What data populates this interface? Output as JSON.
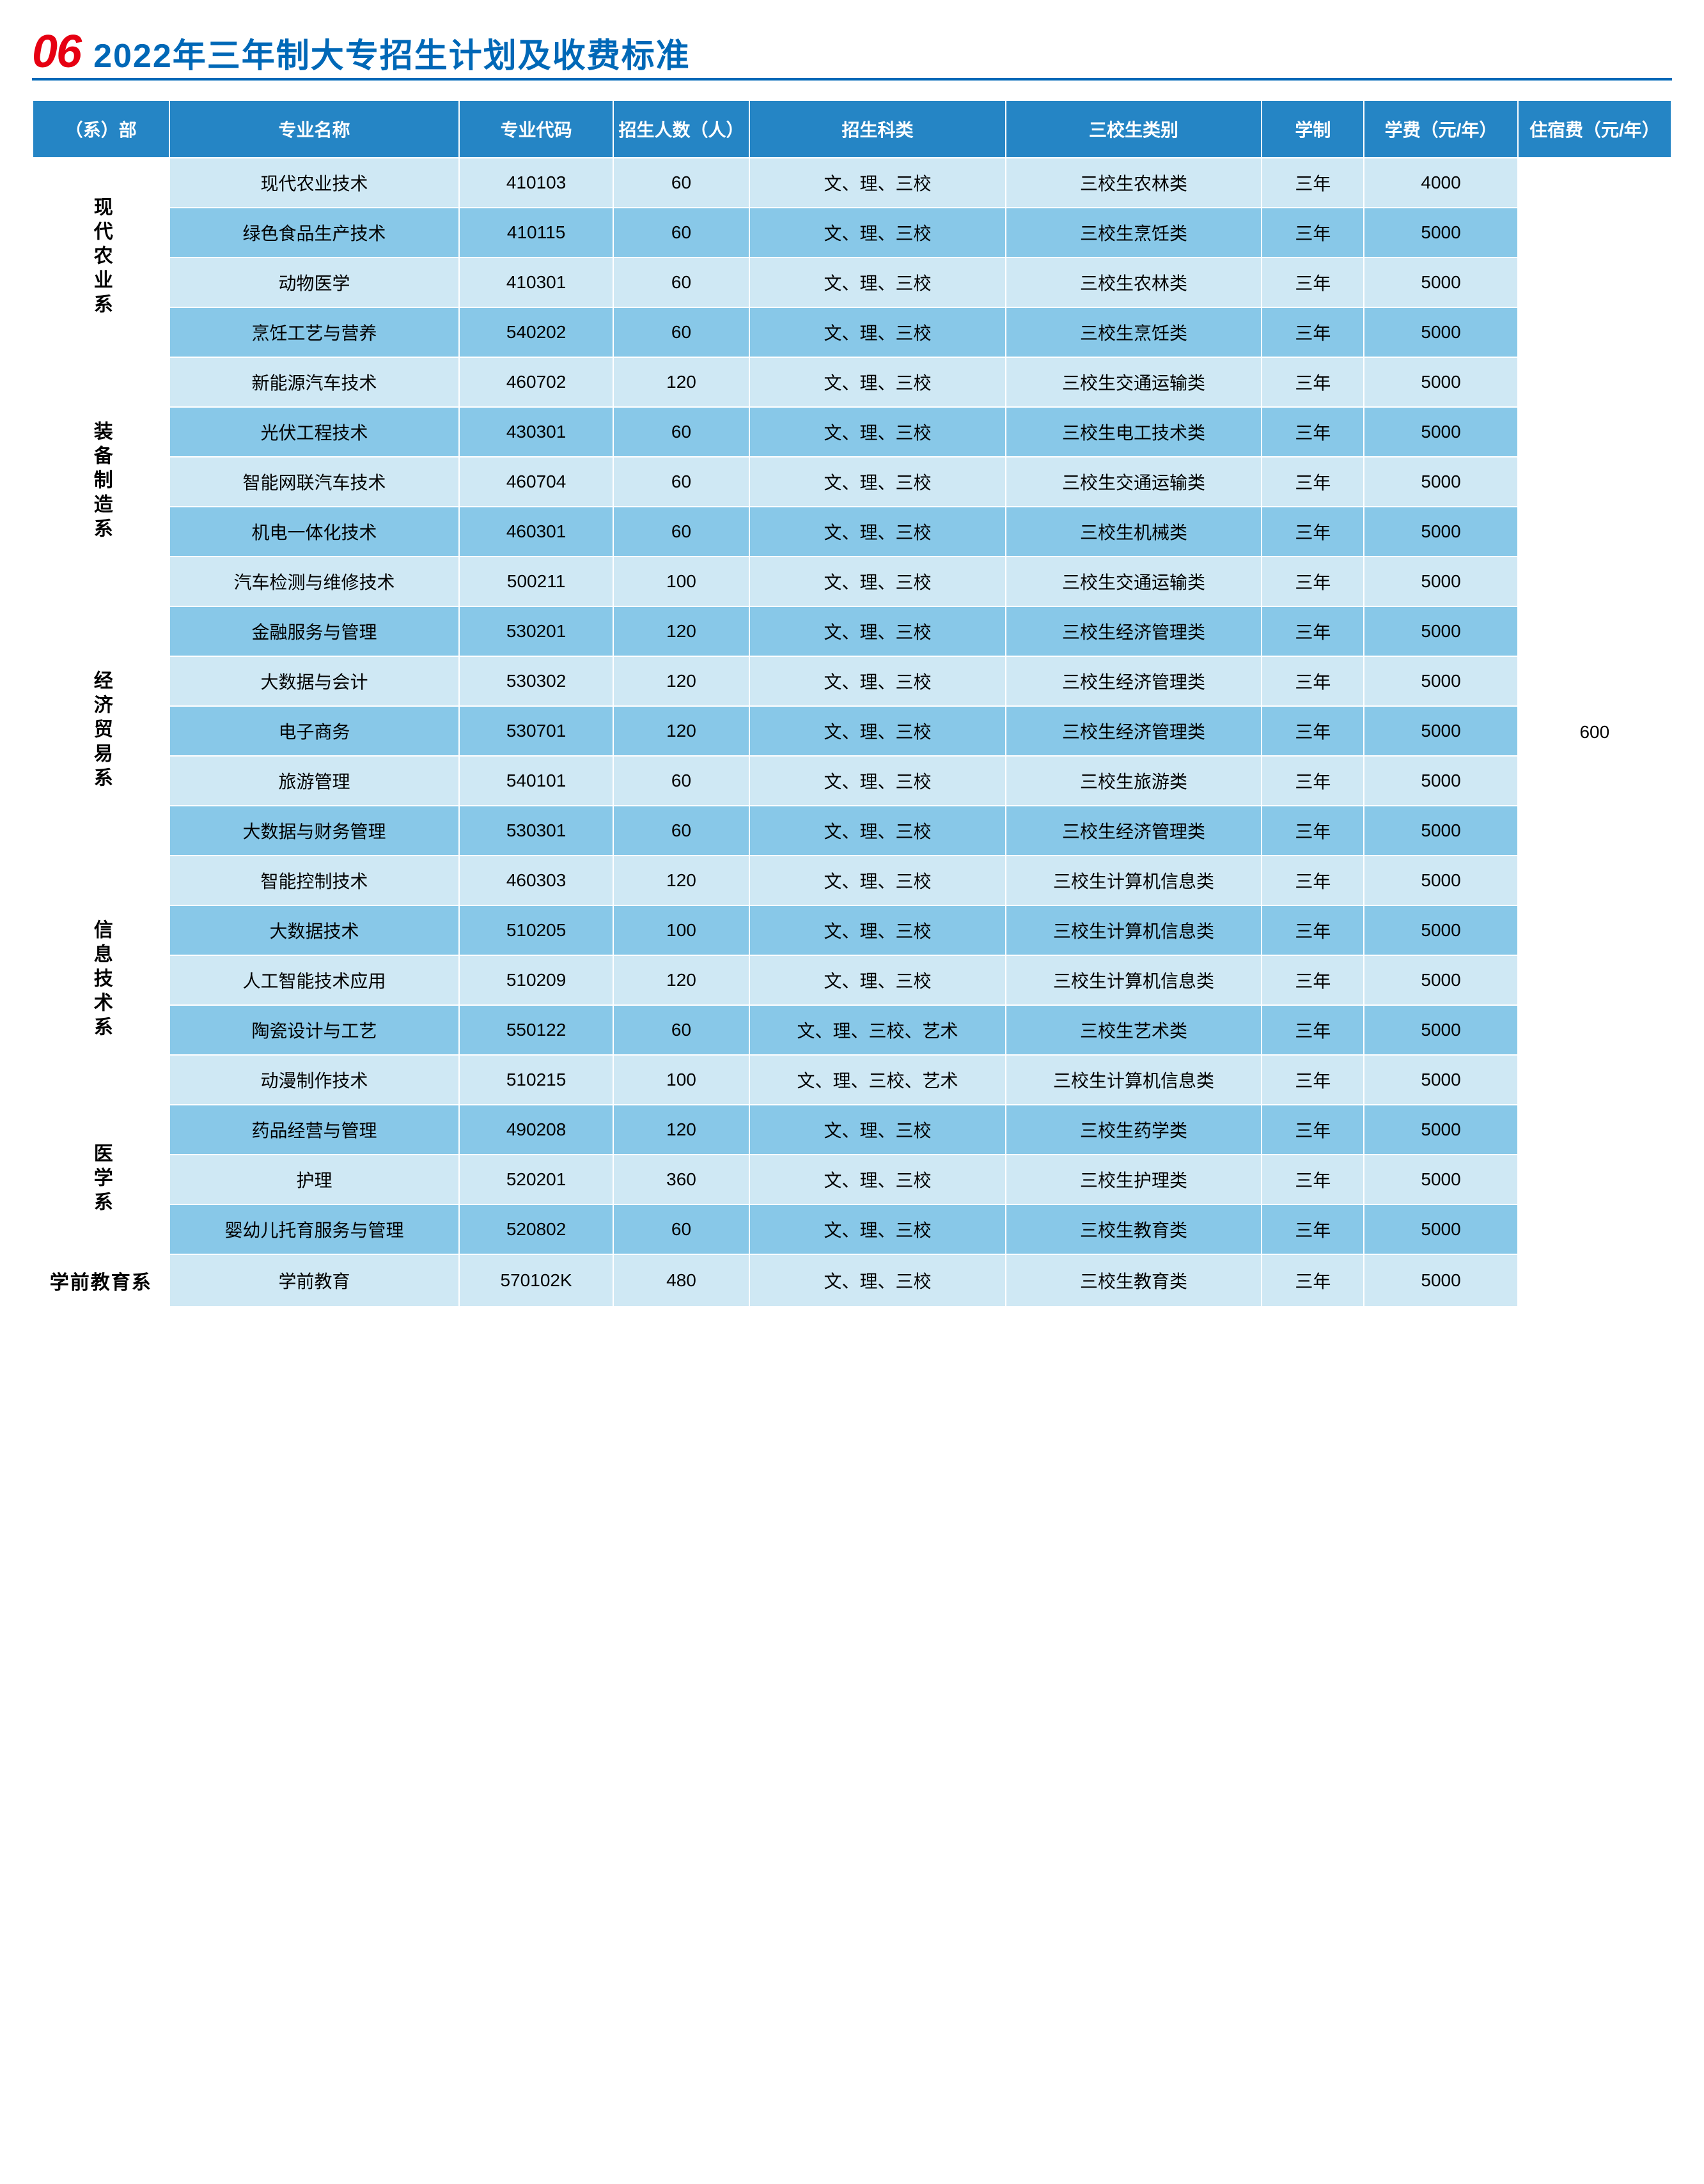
{
  "section_number": "06",
  "section_title": "2022年三年制大专招生计划及收费标准",
  "colors": {
    "accent_red": "#e60012",
    "title_blue": "#0068b7",
    "header_bg": "#2585c5",
    "row_light": "#cfe8f4",
    "row_dark": "#88c8e8",
    "border": "#ffffff",
    "underline": "#0068b7"
  },
  "columns": [
    "（系）部",
    "专业名称",
    "专业代码",
    "招生人数（人）",
    "招生科类",
    "三校生类别",
    "学制",
    "学费（元/年）",
    "住宿费（元/年）"
  ],
  "accommodation_fee": "600",
  "departments": [
    {
      "name": "现代农业系",
      "vertical": true,
      "rows": [
        {
          "major": "现代农业技术",
          "code": "410103",
          "num": "60",
          "subj": "文、理、三校",
          "type": "三校生农林类",
          "dur": "三年",
          "fee": "4000",
          "shade": "light"
        },
        {
          "major": "绿色食品生产技术",
          "code": "410115",
          "num": "60",
          "subj": "文、理、三校",
          "type": "三校生烹饪类",
          "dur": "三年",
          "fee": "5000",
          "shade": "dark"
        },
        {
          "major": "动物医学",
          "code": "410301",
          "num": "60",
          "subj": "文、理、三校",
          "type": "三校生农林类",
          "dur": "三年",
          "fee": "5000",
          "shade": "light"
        },
        {
          "major": "烹饪工艺与营养",
          "code": "540202",
          "num": "60",
          "subj": "文、理、三校",
          "type": "三校生烹饪类",
          "dur": "三年",
          "fee": "5000",
          "shade": "dark"
        }
      ]
    },
    {
      "name": "装备制造系",
      "vertical": true,
      "rows": [
        {
          "major": "新能源汽车技术",
          "code": "460702",
          "num": "120",
          "subj": "文、理、三校",
          "type": "三校生交通运输类",
          "dur": "三年",
          "fee": "5000",
          "shade": "light"
        },
        {
          "major": "光伏工程技术",
          "code": "430301",
          "num": "60",
          "subj": "文、理、三校",
          "type": "三校生电工技术类",
          "dur": "三年",
          "fee": "5000",
          "shade": "dark"
        },
        {
          "major": "智能网联汽车技术",
          "code": "460704",
          "num": "60",
          "subj": "文、理、三校",
          "type": "三校生交通运输类",
          "dur": "三年",
          "fee": "5000",
          "shade": "light"
        },
        {
          "major": "机电一体化技术",
          "code": "460301",
          "num": "60",
          "subj": "文、理、三校",
          "type": "三校生机械类",
          "dur": "三年",
          "fee": "5000",
          "shade": "dark"
        },
        {
          "major": "汽车检测与维修技术",
          "code": "500211",
          "num": "100",
          "subj": "文、理、三校",
          "type": "三校生交通运输类",
          "dur": "三年",
          "fee": "5000",
          "shade": "light"
        }
      ]
    },
    {
      "name": "经济贸易系",
      "vertical": true,
      "rows": [
        {
          "major": "金融服务与管理",
          "code": "530201",
          "num": "120",
          "subj": "文、理、三校",
          "type": "三校生经济管理类",
          "dur": "三年",
          "fee": "5000",
          "shade": "dark"
        },
        {
          "major": "大数据与会计",
          "code": "530302",
          "num": "120",
          "subj": "文、理、三校",
          "type": "三校生经济管理类",
          "dur": "三年",
          "fee": "5000",
          "shade": "light"
        },
        {
          "major": "电子商务",
          "code": "530701",
          "num": "120",
          "subj": "文、理、三校",
          "type": "三校生经济管理类",
          "dur": "三年",
          "fee": "5000",
          "shade": "dark"
        },
        {
          "major": "旅游管理",
          "code": "540101",
          "num": "60",
          "subj": "文、理、三校",
          "type": "三校生旅游类",
          "dur": "三年",
          "fee": "5000",
          "shade": "light"
        },
        {
          "major": "大数据与财务管理",
          "code": "530301",
          "num": "60",
          "subj": "文、理、三校",
          "type": "三校生经济管理类",
          "dur": "三年",
          "fee": "5000",
          "shade": "dark"
        }
      ]
    },
    {
      "name": "信息技术系",
      "vertical": true,
      "rows": [
        {
          "major": "智能控制技术",
          "code": "460303",
          "num": "120",
          "subj": "文、理、三校",
          "type": "三校生计算机信息类",
          "dur": "三年",
          "fee": "5000",
          "shade": "light"
        },
        {
          "major": "大数据技术",
          "code": "510205",
          "num": "100",
          "subj": "文、理、三校",
          "type": "三校生计算机信息类",
          "dur": "三年",
          "fee": "5000",
          "shade": "dark"
        },
        {
          "major": "人工智能技术应用",
          "code": "510209",
          "num": "120",
          "subj": "文、理、三校",
          "type": "三校生计算机信息类",
          "dur": "三年",
          "fee": "5000",
          "shade": "light"
        },
        {
          "major": "陶瓷设计与工艺",
          "code": "550122",
          "num": "60",
          "subj": "文、理、三校、艺术",
          "type": "三校生艺术类",
          "dur": "三年",
          "fee": "5000",
          "shade": "dark"
        },
        {
          "major": "动漫制作技术",
          "code": "510215",
          "num": "100",
          "subj": "文、理、三校、艺术",
          "type": "三校生计算机信息类",
          "dur": "三年",
          "fee": "5000",
          "shade": "light"
        }
      ]
    },
    {
      "name": "医学系",
      "vertical": true,
      "rows": [
        {
          "major": "药品经营与管理",
          "code": "490208",
          "num": "120",
          "subj": "文、理、三校",
          "type": "三校生药学类",
          "dur": "三年",
          "fee": "5000",
          "shade": "dark"
        },
        {
          "major": "护理",
          "code": "520201",
          "num": "360",
          "subj": "文、理、三校",
          "type": "三校生护理类",
          "dur": "三年",
          "fee": "5000",
          "shade": "light"
        },
        {
          "major": "婴幼儿托育服务与管理",
          "code": "520802",
          "num": "60",
          "subj": "文、理、三校",
          "type": "三校生教育类",
          "dur": "三年",
          "fee": "5000",
          "shade": "dark"
        }
      ]
    },
    {
      "name": "学前教育系",
      "vertical": false,
      "rows": [
        {
          "major": "学前教育",
          "code": "570102K",
          "num": "480",
          "subj": "文、理、三校",
          "type": "三校生教育类",
          "dur": "三年",
          "fee": "5000",
          "shade": "light"
        }
      ]
    }
  ]
}
